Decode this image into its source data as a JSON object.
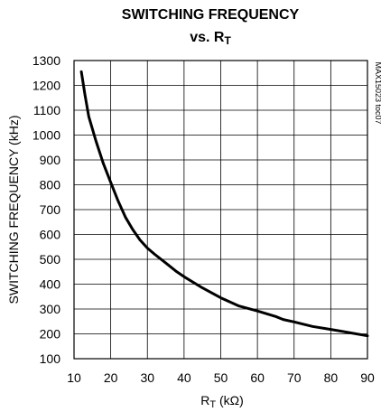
{
  "chart_data": {
    "type": "line",
    "title_line1": "SWITCHING FREQUENCY",
    "title_line2": "vs. R",
    "title_line2_sub": "T",
    "xlabel": "R",
    "xlabel_sub": "T",
    "xlabel_unit": " (kΩ)",
    "ylabel": "SWITCHING FREQUENCY (kHz)",
    "side_note": "MAX15023 toc07",
    "xlim": [
      10,
      90
    ],
    "ylim": [
      100,
      1300
    ],
    "x_ticks": [
      10,
      20,
      30,
      40,
      50,
      60,
      70,
      80,
      90
    ],
    "y_ticks": [
      100,
      200,
      300,
      400,
      500,
      600,
      700,
      800,
      900,
      1000,
      1100,
      1200,
      1300
    ],
    "grid": true,
    "series": [
      {
        "x": [
          12,
          13,
          14,
          16,
          18,
          20,
          22,
          24,
          26,
          28,
          30,
          32,
          35,
          38,
          40,
          45,
          50,
          55,
          60,
          65,
          67,
          70,
          75,
          80,
          85,
          90
        ],
        "y": [
          1255,
          1160,
          1075,
          975,
          885,
          810,
          735,
          670,
          620,
          578,
          545,
          520,
          485,
          450,
          430,
          385,
          345,
          312,
          292,
          270,
          258,
          248,
          230,
          218,
          205,
          192
        ]
      }
    ]
  }
}
